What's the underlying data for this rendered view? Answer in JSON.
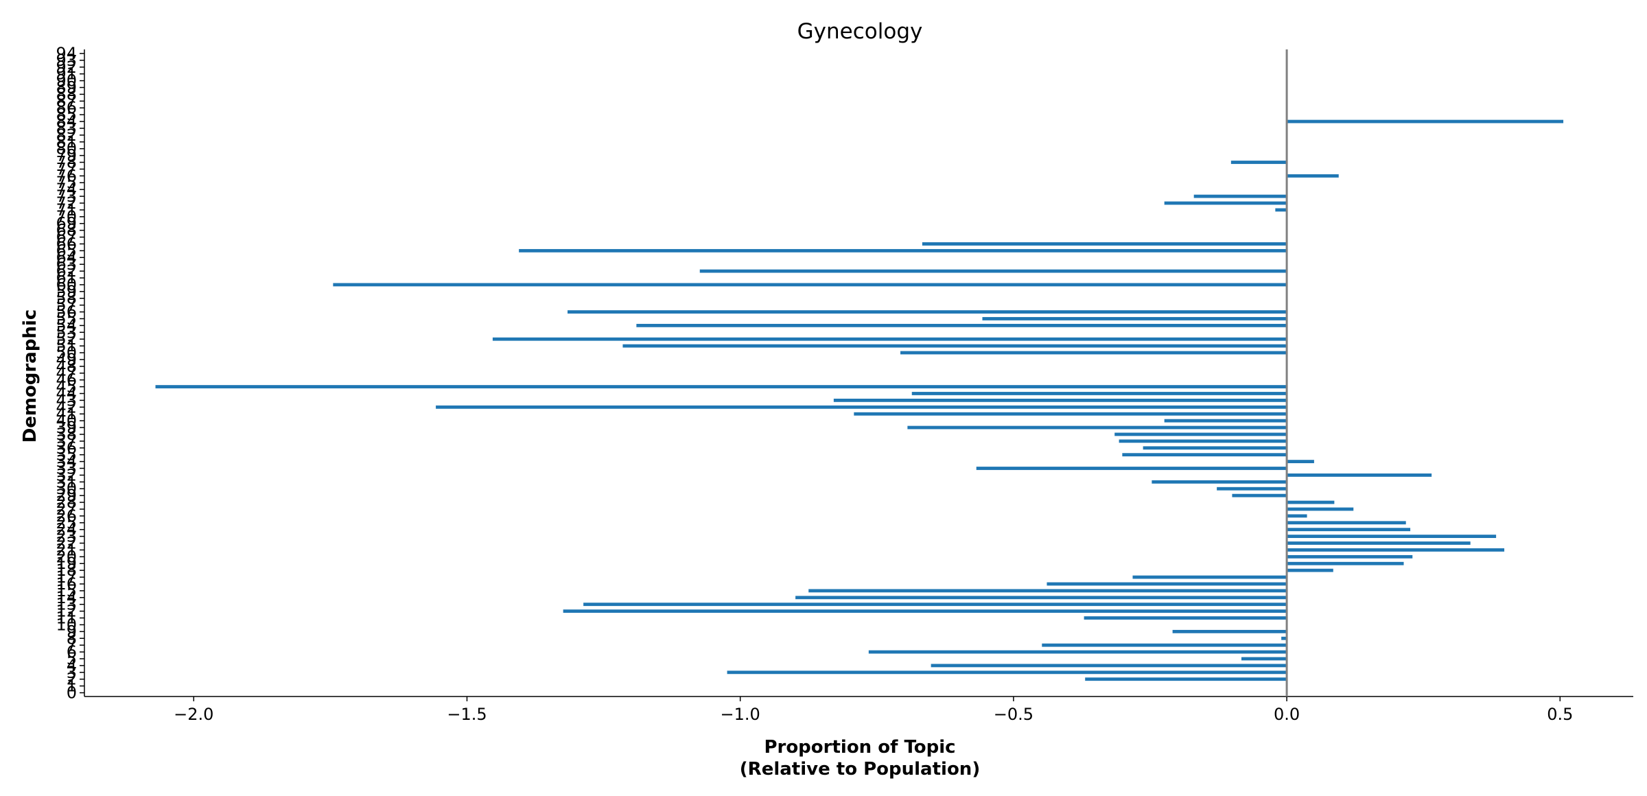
{
  "chart_data": {
    "type": "barh",
    "title": "Gynecology",
    "xlabel": [
      "Proportion of Topic",
      "(Relative to Population)"
    ],
    "ylabel": "Demographic",
    "color": "#1f77b4",
    "categories": [
      "0",
      "1",
      "2",
      "3",
      "4",
      "5",
      "6",
      "7",
      "8",
      "9",
      "10",
      "11",
      "12",
      "13",
      "14",
      "15",
      "16",
      "17",
      "18",
      "19",
      "20",
      "21",
      "22",
      "23",
      "24",
      "25",
      "26",
      "27",
      "28",
      "29",
      "30",
      "31",
      "32",
      "33",
      "34",
      "35",
      "36",
      "37",
      "38",
      "39",
      "40",
      "41",
      "42",
      "43",
      "44",
      "45",
      "46",
      "47",
      "48",
      "49",
      "50",
      "51",
      "52",
      "53",
      "54",
      "55",
      "56",
      "57",
      "58",
      "59",
      "60",
      "61",
      "62",
      "63",
      "64",
      "65",
      "66",
      "67",
      "68",
      "69",
      "70",
      "71",
      "72",
      "73",
      "74",
      "75",
      "76",
      "77",
      "78",
      "79",
      "80",
      "81",
      "82",
      "83",
      "84",
      "85",
      "86",
      "87",
      "88",
      "89",
      "90",
      "91",
      "92",
      "93",
      "94"
    ],
    "values": [
      0,
      0,
      -0.369,
      -1.024,
      -0.651,
      -0.083,
      -0.765,
      -0.448,
      -0.01,
      -0.209,
      0,
      -0.371,
      -1.324,
      -1.287,
      -0.899,
      -0.875,
      -0.439,
      -0.282,
      0.085,
      0.214,
      0.23,
      0.398,
      0.336,
      0.383,
      0.226,
      0.218,
      0.037,
      0.122,
      0.087,
      -0.1,
      -0.128,
      -0.247,
      0.265,
      -0.568,
      0.05,
      -0.301,
      -0.263,
      -0.307,
      -0.315,
      -0.694,
      -0.224,
      -0.792,
      -1.557,
      -0.829,
      -0.686,
      -2.07,
      0,
      0,
      0,
      0,
      -0.707,
      -1.215,
      -1.453,
      0,
      -1.19,
      -0.557,
      -1.316,
      0,
      0,
      0,
      -1.745,
      0,
      -1.074,
      0,
      0,
      -1.405,
      -0.667,
      0,
      0,
      0,
      0,
      -0.021,
      -0.224,
      -0.17,
      0,
      0,
      0.095,
      0,
      -0.102,
      0,
      0,
      0,
      0,
      0,
      0.506,
      0,
      0,
      0,
      0,
      0,
      0,
      0,
      0,
      0,
      0
    ],
    "xlim": [
      -2.2,
      0.634
    ],
    "xticks": [
      {
        "value": -2,
        "label": "−2.0"
      },
      {
        "value": -1.5,
        "label": "−1.5"
      },
      {
        "value": -1,
        "label": "−1.0"
      },
      {
        "value": -0.5,
        "label": "−0.5"
      },
      {
        "value": 0,
        "label": "0.0"
      },
      0.5
    ],
    "zero_line_color": "#808080"
  }
}
